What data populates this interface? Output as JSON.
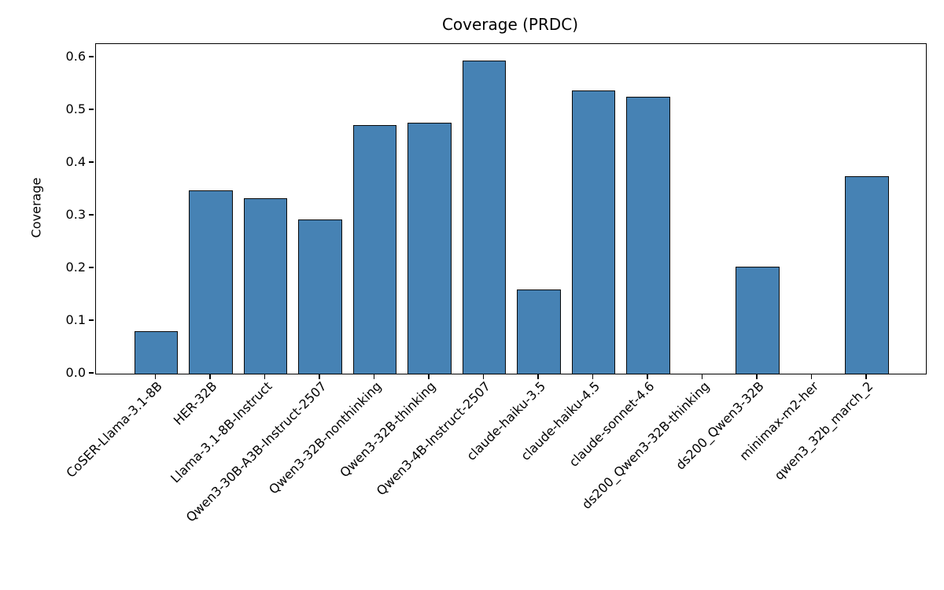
{
  "title": "Coverage (PRDC)",
  "colors": {
    "bar_fill": "#4682B4",
    "bar_edge": "#0a0a0a",
    "axis": "#000000",
    "background": "#ffffff"
  },
  "chart_data": {
    "type": "bar",
    "title": "Coverage (PRDC)",
    "xlabel": "",
    "ylabel": "Coverage",
    "categories": [
      "CoSER-Llama-3.1-8B",
      "HER-32B",
      "Llama-3.1-8B-Instruct",
      "Qwen3-30B-A3B-Instruct-2507",
      "Qwen3-32B-nonthinking",
      "Qwen3-32B-thinking",
      "Qwen3-4B-Instruct-2507",
      "claude-haiku-3.5",
      "claude-haiku-4.5",
      "claude-sonnet-4.6",
      "ds200_Qwen3-32B-thinking",
      "ds200_Qwen3-32B",
      "minimax-m2-her",
      "qwen3_32b_march_2"
    ],
    "values": [
      0.08,
      0.348,
      0.332,
      0.292,
      0.472,
      0.476,
      0.594,
      0.16,
      0.537,
      0.525,
      0.0,
      0.203,
      0.0,
      0.374
    ],
    "yticks": [
      "0.0",
      "0.1",
      "0.2",
      "0.3",
      "0.4",
      "0.5",
      "0.6"
    ],
    "ylim": [
      0,
      0.625
    ],
    "x_tick_rotation": 45,
    "grid": false,
    "legend": "none"
  }
}
